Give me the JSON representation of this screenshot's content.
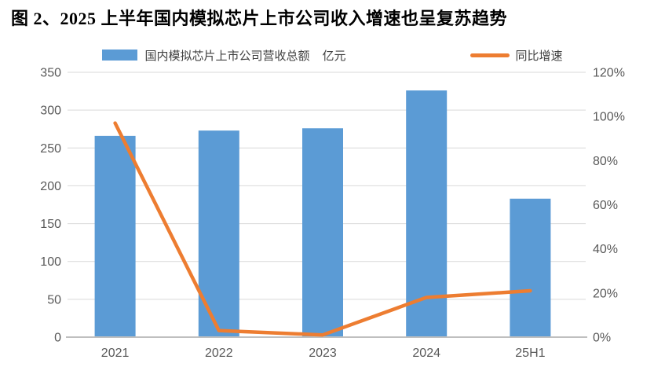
{
  "page": {
    "title": "图 2、2025 上半年国内模拟芯片上市公司收入增速也呈复苏趋势"
  },
  "legend": {
    "bar": {
      "label": "国内模拟芯片上市公司营收总额",
      "unit": "亿元",
      "color": "#5B9BD5"
    },
    "line": {
      "label": "同比增速",
      "color": "#ED7D31"
    }
  },
  "chart_data": {
    "type": "combo",
    "categories": [
      "2021",
      "2022",
      "2023",
      "2024",
      "25H1"
    ],
    "series": [
      {
        "name": "国内模拟芯片上市公司营收总额 亿元",
        "type": "bar",
        "axis": "left",
        "values": [
          266,
          273,
          276,
          326,
          183
        ]
      },
      {
        "name": "同比增速",
        "type": "line",
        "axis": "right",
        "values_pct": [
          97,
          3,
          1,
          18,
          21
        ]
      }
    ],
    "left_axis": {
      "min": 0,
      "max": 350,
      "ticks": [
        0,
        50,
        100,
        150,
        200,
        250,
        300,
        350
      ]
    },
    "right_axis": {
      "min": 0,
      "max": 120,
      "ticks": [
        0,
        20,
        40,
        60,
        80,
        100,
        120
      ],
      "suffix": "%"
    },
    "grid": "horizontal",
    "legend_position": "top",
    "colors": {
      "bar": "#5B9BD5",
      "line": "#ED7D31",
      "grid": "#D9D9D9",
      "axis_line": "#BFBFBF",
      "axis_text": "#595959",
      "title_text": "#000000",
      "background": "#FFFFFF"
    }
  }
}
